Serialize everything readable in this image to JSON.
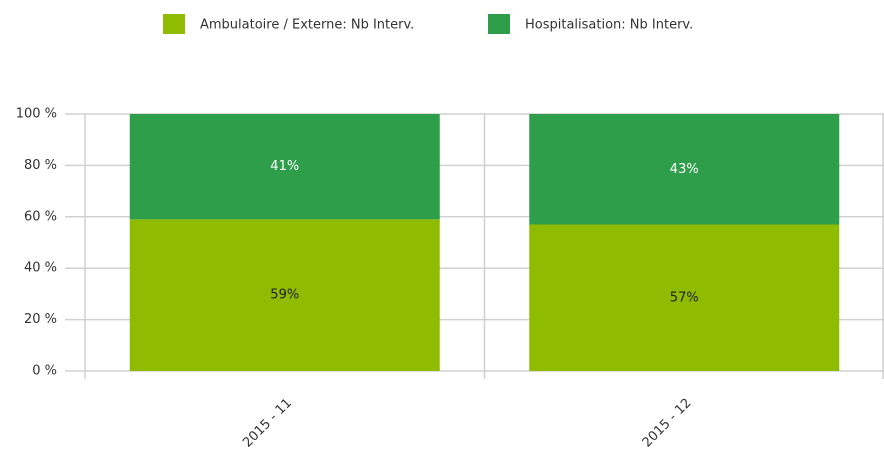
{
  "chart_data": {
    "type": "stacked_bar",
    "categories": [
      "2015 - 11",
      "2015 - 12"
    ],
    "series": [
      {
        "name": "Ambulatoire / Externe: Nb Interv.",
        "color": "#8fbb00",
        "values": [
          59,
          57
        ],
        "value_labels": [
          "59%",
          "57%"
        ]
      },
      {
        "name": "Hospitalisation: Nb Interv.",
        "color": "#2f9e4b",
        "values": [
          41,
          43
        ],
        "value_labels": [
          "41%",
          "43%"
        ]
      }
    ],
    "ylim": [
      0,
      100
    ],
    "yticks": [
      {
        "value": 0,
        "label": "0 %"
      },
      {
        "value": 20,
        "label": "20 %"
      },
      {
        "value": 40,
        "label": "40 %"
      },
      {
        "value": 60,
        "label": "60 %"
      },
      {
        "value": 80,
        "label": "80 %"
      },
      {
        "value": 100,
        "label": "100 %"
      }
    ],
    "grid": true,
    "legend": "top"
  }
}
